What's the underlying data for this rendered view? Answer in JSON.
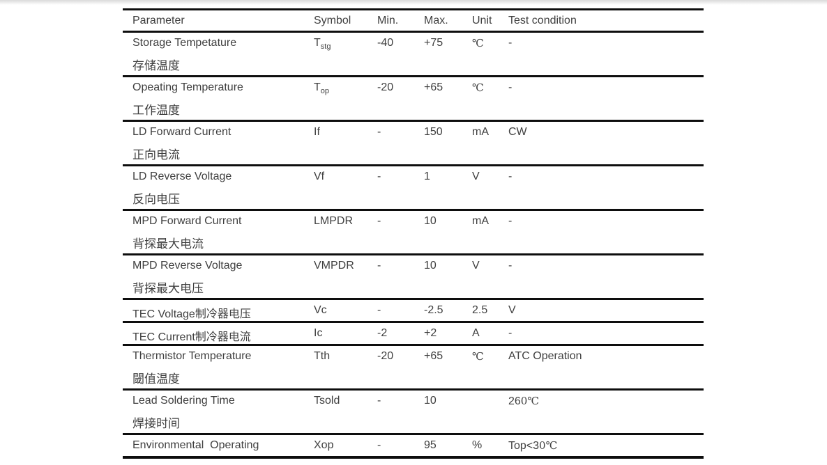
{
  "table": {
    "columns": [
      "Parameter",
      "Symbol",
      "Min.",
      "Max.",
      "Unit",
      "Test condition"
    ],
    "rows": [
      {
        "param_en": "Storage Tempetature",
        "param_zh": "存储温度",
        "symbol": "T",
        "symbol_sub": "stg",
        "min": "-40",
        "max": "+75",
        "unit": "℃",
        "test": "-",
        "test_cjk": ""
      },
      {
        "param_en": "Opeating Temperature",
        "param_zh": "工作温度",
        "symbol": "T",
        "symbol_sub": "op",
        "min": "-20",
        "max": "+65",
        "unit": "℃",
        "test": "-",
        "test_cjk": ""
      },
      {
        "param_en": "LD Forward Current",
        "param_zh": "正向电流",
        "symbol": "If",
        "symbol_sub": "",
        "min": "-",
        "max": "150",
        "unit": "mA",
        "test": "CW",
        "test_cjk": ""
      },
      {
        "param_en": "LD Reverse Voltage",
        "param_zh": "反向电压",
        "symbol": "Vf",
        "symbol_sub": "",
        "min": "-",
        "max": "1",
        "unit": "V",
        "test": "-",
        "test_cjk": ""
      },
      {
        "param_en": "MPD Forward Current",
        "param_zh": "背探最大电流",
        "symbol": "LMPDR",
        "symbol_sub": "",
        "min": "-",
        "max": "10",
        "unit": "mA",
        "test": "-",
        "test_cjk": ""
      },
      {
        "param_en": "MPD Reverse Voltage",
        "param_zh": "背探最大电压",
        "symbol": "VMPDR",
        "symbol_sub": "",
        "min": "-",
        "max": "10",
        "unit": "V",
        "test": "-",
        "test_cjk": ""
      },
      {
        "param_en": "TEC Voltage制冷器电压",
        "param_zh": "",
        "symbol": "Vc",
        "symbol_sub": "",
        "min": "-",
        "max": "-2.5",
        "unit": "2.5",
        "test": "V",
        "test_cjk": ""
      },
      {
        "param_en": "TEC Current制冷器电流",
        "param_zh": "",
        "symbol": "Ic",
        "symbol_sub": "",
        "min": "-2",
        "max": "+2",
        "unit": "A",
        "test": "-",
        "test_cjk": ""
      },
      {
        "param_en": "Thermistor Temperature",
        "param_zh": "閾值温度",
        "symbol": "Tth",
        "symbol_sub": "",
        "min": "-20",
        "max": "+65",
        "unit": "℃",
        "test": "ATC Operation",
        "test_cjk": ""
      },
      {
        "param_en": "Lead Soldering Time",
        "param_zh": "焊接时间",
        "symbol": "Tsold",
        "symbol_sub": "",
        "min": "-",
        "max": "10",
        "unit": "",
        "test": "26",
        "test_cjk": "0℃"
      },
      {
        "param_en": "Environmental  Operating",
        "param_zh": "",
        "symbol": "Xop",
        "symbol_sub": "",
        "min": "-",
        "max": "95",
        "unit": "%",
        "test": "Top<3",
        "test_cjk": "0℃"
      }
    ]
  },
  "colors": {
    "text": "#3f3f3f",
    "line": "#0e0e0e",
    "background": "#ffffff"
  }
}
